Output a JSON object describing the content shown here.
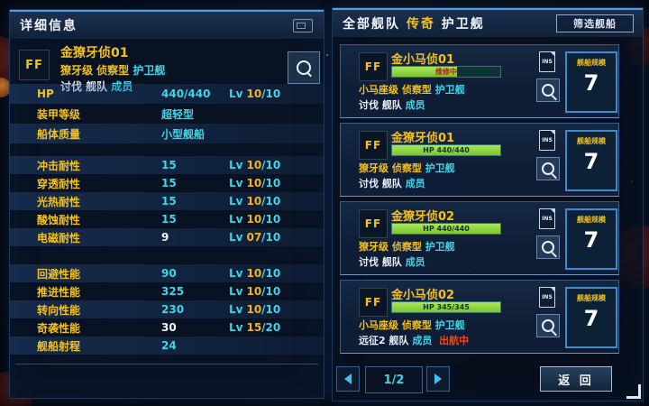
{
  "colors": {
    "accent_yellow": "#f2c11e",
    "accent_cyan": "#3fd4e6",
    "hp_green": "#8ed23c",
    "alert_red": "#e8491e",
    "panel_blue": "#0a1a30"
  },
  "left_panel": {
    "title": "详细信息",
    "ship": {
      "badge": "FF",
      "name": "金獠牙侦01",
      "class_line": "獠牙级 侦察型",
      "ship_type": "护卫舰",
      "fleet_line": "讨伐 舰队",
      "member": "成员"
    },
    "stats": [
      {
        "label": "HP",
        "value": "440/440",
        "lv_label": "Lv",
        "lv_num": "10",
        "lv_max": "/10"
      },
      {
        "label": "装甲等级",
        "value": "超轻型",
        "lv_label": "",
        "lv_num": "",
        "lv_max": ""
      },
      {
        "label": "船体质量",
        "value": "小型舰船",
        "lv_label": "",
        "lv_num": "",
        "lv_max": ""
      },
      {
        "label": "冲击耐性",
        "value": "15",
        "lv_label": "Lv",
        "lv_num": "10",
        "lv_max": "/10"
      },
      {
        "label": "穿透耐性",
        "value": "15",
        "lv_label": "Lv",
        "lv_num": "10",
        "lv_max": "/10"
      },
      {
        "label": "光热耐性",
        "value": "15",
        "lv_label": "Lv",
        "lv_num": "10",
        "lv_max": "/10"
      },
      {
        "label": "酸蚀耐性",
        "value": "15",
        "lv_label": "Lv",
        "lv_num": "10",
        "lv_max": "/10"
      },
      {
        "label": "电磁耐性",
        "value": "9",
        "lv_label": "Lv",
        "lv_num": "07",
        "lv_max": "/10"
      },
      {
        "label": "回避性能",
        "value": "90",
        "lv_label": "Lv",
        "lv_num": "10",
        "lv_max": "/10"
      },
      {
        "label": "推进性能",
        "value": "325",
        "lv_label": "Lv",
        "lv_num": "10",
        "lv_max": "/10"
      },
      {
        "label": "转向性能",
        "value": "230",
        "lv_label": "Lv",
        "lv_num": "10",
        "lv_max": "/10"
      },
      {
        "label": "奇袭性能",
        "value": "30",
        "lv_label": "Lv",
        "lv_num": "15",
        "lv_max": "/20"
      },
      {
        "label": "舰船射程",
        "value": "24",
        "lv_label": "",
        "lv_num": "",
        "lv_max": ""
      }
    ]
  },
  "right_panel": {
    "title_all": "全部舰队",
    "title_legend": "传奇",
    "title_type": "护卫舰",
    "filter_button": "筛选舰船",
    "cards": [
      {
        "badge": "FF",
        "name": "金小马侦01",
        "bar_text": "维修中",
        "bar_fill": "60%",
        "class_line": "小马座级 侦察型",
        "ship_type": "护卫舰",
        "fleet_line": "讨伐 舰队",
        "member": "成员",
        "status": "",
        "ins_label": "INS",
        "scale_label": "舰船规模",
        "scale_value": "7"
      },
      {
        "badge": "FF",
        "name": "金獠牙侦01",
        "bar_text": "HP 440/440",
        "bar_fill": "100%",
        "class_line": "獠牙级 侦察型",
        "ship_type": "护卫舰",
        "fleet_line": "讨伐 舰队",
        "member": "成员",
        "status": "",
        "ins_label": "INS",
        "scale_label": "舰船规模",
        "scale_value": "7"
      },
      {
        "badge": "FF",
        "name": "金獠牙侦02",
        "bar_text": "HP 440/440",
        "bar_fill": "100%",
        "class_line": "獠牙级 侦察型",
        "ship_type": "护卫舰",
        "fleet_line": "讨伐 舰队",
        "member": "成员",
        "status": "",
        "ins_label": "INS",
        "scale_label": "舰船规模",
        "scale_value": "7"
      },
      {
        "badge": "FF",
        "name": "金小马侦02",
        "bar_text": "HP 345/345",
        "bar_fill": "100%",
        "class_line": "小马座级 侦察型",
        "ship_type": "护卫舰",
        "fleet_line": "远征2 舰队",
        "member": "成员",
        "status": "出航中",
        "ins_label": "INS",
        "scale_label": "舰船规模",
        "scale_value": "7"
      }
    ],
    "pagination": {
      "page": "1/2"
    },
    "back_button": "返 回"
  }
}
